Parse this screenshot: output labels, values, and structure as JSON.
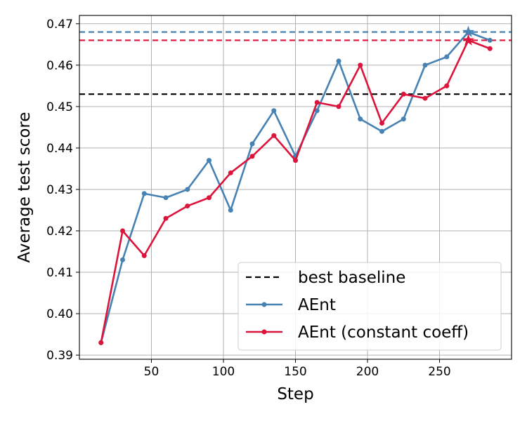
{
  "chart_data": {
    "type": "line",
    "xlabel": "Step",
    "ylabel": "Average test score",
    "xlim": [
      0,
      300
    ],
    "ylim": [
      0.389,
      0.472
    ],
    "xticks": [
      50,
      100,
      150,
      200,
      250
    ],
    "xtick_labels": [
      "50",
      "100",
      "150",
      "200",
      "250"
    ],
    "yticks": [
      0.39,
      0.4,
      0.41,
      0.42,
      0.43,
      0.44,
      0.45,
      0.46,
      0.47
    ],
    "ytick_labels": [
      "0.39",
      "0.40",
      "0.41",
      "0.42",
      "0.43",
      "0.44",
      "0.45",
      "0.46",
      "0.47"
    ],
    "grid": true,
    "legend_position": "bottom-right",
    "hlines": [
      {
        "name": "best baseline",
        "y": 0.453,
        "color": "#000000",
        "style": "dashed",
        "in_legend": true
      },
      {
        "name": "",
        "y": 0.468,
        "color": "#4682B4",
        "style": "dashed",
        "in_legend": false
      },
      {
        "name": "",
        "y": 0.466,
        "color": "#DC143C",
        "style": "dashed",
        "in_legend": false
      }
    ],
    "x": [
      15,
      30,
      45,
      60,
      75,
      90,
      105,
      120,
      135,
      150,
      165,
      180,
      195,
      210,
      225,
      240,
      255,
      270,
      285
    ],
    "series": [
      {
        "name": "AEnt",
        "color": "#4682B4",
        "values": [
          0.393,
          0.413,
          0.429,
          0.428,
          0.43,
          0.437,
          0.425,
          0.441,
          0.449,
          0.438,
          0.449,
          0.461,
          0.447,
          0.444,
          0.447,
          0.46,
          0.462,
          0.468,
          0.466
        ],
        "best_marker": {
          "x": 270,
          "y": 0.468,
          "shape": "star"
        }
      },
      {
        "name": "AEnt (constant coeff)",
        "color": "#DC143C",
        "values": [
          0.393,
          0.42,
          0.414,
          0.423,
          0.426,
          0.428,
          0.434,
          0.438,
          0.443,
          0.437,
          0.451,
          0.45,
          0.46,
          0.446,
          0.453,
          0.452,
          0.455,
          0.466,
          0.464
        ],
        "best_marker": {
          "x": 270,
          "y": 0.466,
          "shape": "star"
        }
      }
    ]
  }
}
